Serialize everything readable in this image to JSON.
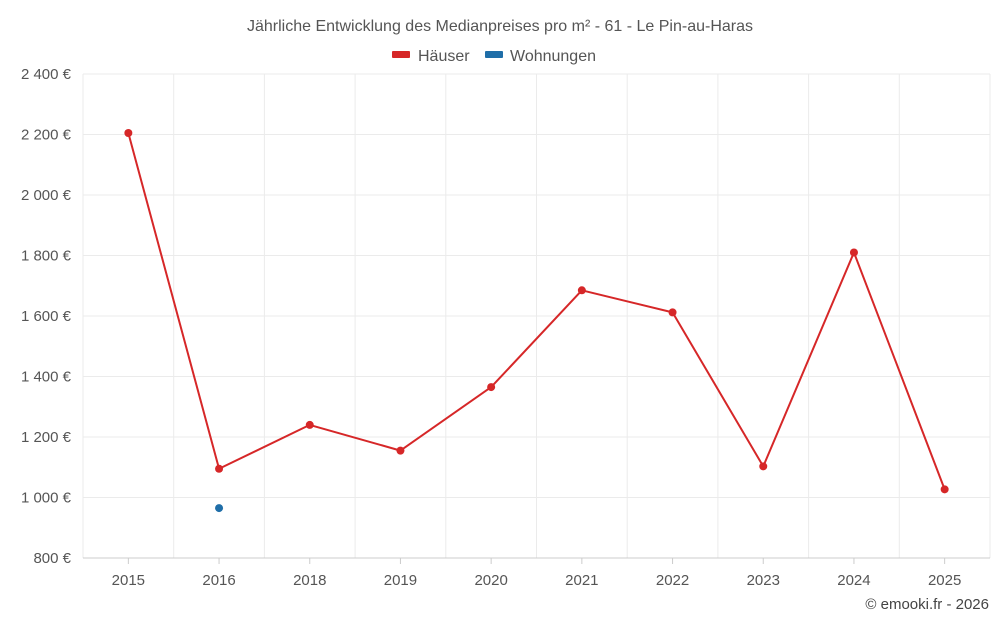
{
  "chart_data": {
    "type": "line",
    "title": "Jährliche Entwicklung des Medianpreises pro m² - 61 - Le Pin-au-Haras",
    "categories": [
      "2015",
      "2016",
      "2018",
      "2019",
      "2020",
      "2021",
      "2022",
      "2023",
      "2024",
      "2025"
    ],
    "series": [
      {
        "name": "Häuser",
        "color": "#d62728",
        "values": [
          2205,
          1095,
          1240,
          1155,
          1365,
          1685,
          1612,
          1103,
          1810,
          1027
        ]
      },
      {
        "name": "Wohnungen",
        "color": "#1f6ea8",
        "values": [
          null,
          965,
          null,
          null,
          null,
          null,
          null,
          null,
          null,
          null
        ]
      }
    ],
    "ylim": [
      800,
      2400
    ],
    "yticks": [
      800,
      1000,
      1200,
      1400,
      1600,
      1800,
      2000,
      2200,
      2400
    ],
    "ytick_labels": [
      "800 €",
      "1 000 €",
      "1 200 €",
      "1 400 €",
      "1 600 €",
      "1 800 €",
      "2 000 €",
      "2 200 €",
      "2 400 €"
    ],
    "xlabel": "",
    "ylabel": "",
    "grid": true,
    "legend_position": "top-center"
  },
  "credit": "© emooki.fr - 2026"
}
